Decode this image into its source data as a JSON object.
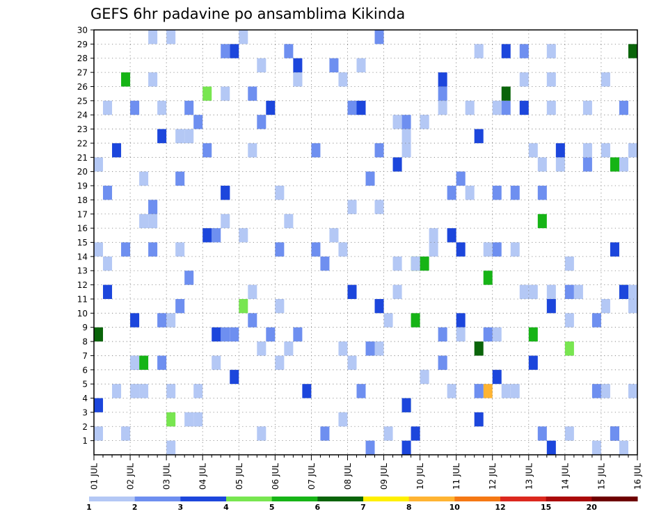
{
  "chart_data": {
    "type": "heatmap",
    "title": "GEFS 6hr padavine po ansamblima Kikinda",
    "xlabel": "",
    "ylabel": "",
    "x_ticks": [
      "01 JUL",
      "02 JUL",
      "03 JUL",
      "04 JUL",
      "05 JUL",
      "06 JUL",
      "07 JUL",
      "08 JUL",
      "09 JUL",
      "10 JUL",
      "11 JUL",
      "12 JUL",
      "13 JUL",
      "14 JUL",
      "15 JUL",
      "16 JUL"
    ],
    "x_range": [
      "01 JUL 00Z",
      "16 JUL 00Z"
    ],
    "time_step_hours": 6,
    "y_ticks": [
      "1",
      "2",
      "3",
      "4",
      "5",
      "6",
      "7",
      "8",
      "9",
      "10",
      "11",
      "12",
      "13",
      "14",
      "15",
      "16",
      "17",
      "18",
      "19",
      "20",
      "21",
      "22",
      "23",
      "24",
      "25",
      "26",
      "27",
      "28",
      "29",
      "30"
    ],
    "y_range": [
      0,
      30
    ],
    "grid": true,
    "color_scale": {
      "colors": [
        "#b4c8f5",
        "#6e8ff0",
        "#1c46dc",
        "#78e650",
        "#16b416",
        "#0a640a",
        "#fff000",
        "#ffb432",
        "#f57814",
        "#dc281e",
        "#aa0a0a",
        "#6e0000"
      ],
      "tick_labels": [
        "1",
        "2",
        "3",
        "4",
        "5",
        "6",
        "7",
        "8",
        "10",
        "12",
        "15",
        "20"
      ],
      "legend_position": "bottom"
    },
    "cells": [
      [
        29,
        1
      ],
      [
        30,
        2
      ],
      [
        38,
        2
      ],
      [
        39,
        2
      ],
      [
        42,
        1
      ],
      [
        43,
        1
      ],
      [
        44,
        1
      ],
      [
        45,
        1
      ],
      [
        46,
        1
      ],
      [
        52,
        1
      ],
      [
        57,
        3
      ],
      [
        58,
        4
      ],
      [
        64,
        2
      ],
      [
        67,
        3
      ],
      [
        68,
        4
      ],
      [
        72,
        2
      ],
      [
        76,
        4
      ],
      [
        78,
        2
      ],
      [
        80,
        1
      ],
      [
        81,
        1
      ],
      [
        82,
        1
      ],
      [
        86,
        1
      ],
      [
        93,
        1
      ],
      [
        94,
        2
      ],
      [
        99,
        3
      ],
      [
        103,
        8
      ],
      [
        104,
        2
      ],
      [
        105,
        2
      ],
      [
        106,
        1
      ],
      [
        109,
        1
      ],
      [
        110,
        3
      ],
      [
        112,
        1
      ],
      [
        119,
        1
      ],
      [
        125,
        5
      ],
      [
        126,
        1
      ],
      [
        128,
        1
      ],
      [
        130,
        2
      ],
      [
        132,
        4
      ],
      [
        134,
        2
      ],
      [
        138,
        1
      ],
      [
        140,
        1
      ],
      [
        148,
        3
      ],
      [
        155,
        5
      ],
      [
        162,
        6
      ],
      [
        176,
        1
      ],
      [
        8,
        1
      ],
      [
        10,
        1
      ],
      [
        13,
        3
      ],
      [
        14,
        3
      ],
      [
        15,
        3
      ],
      [
        17,
        1
      ],
      [
        19,
        3
      ],
      [
        21,
        1
      ],
      [
        27,
        1
      ],
      [
        31,
        2
      ],
      [
        32,
        1
      ],
      [
        33,
        1
      ],
      [
        34,
        1
      ],
      [
        35,
        3
      ],
      [
        37,
        1
      ],
      [
        38,
        1
      ],
      [
        39,
        1
      ],
      [
        40,
        3
      ],
      [
        41,
        1
      ],
      [
        42,
        2
      ],
      [
        47,
        1
      ],
      [
        48,
        3
      ],
      [
        49,
        5
      ],
      [
        50,
        1
      ],
      [
        56,
        1
      ],
      [
        57,
        2
      ],
      [
        58,
        3
      ],
      [
        59,
        1
      ],
      [
        60,
        1
      ],
      [
        61,
        3
      ],
      [
        62,
        3
      ],
      [
        64,
        1
      ],
      [
        66,
        1
      ],
      [
        68,
        1
      ],
      [
        69,
        2
      ],
      [
        71,
        2
      ],
      [
        73,
        1
      ],
      [
        74,
        1
      ],
      [
        76,
        1
      ],
      [
        77,
        2
      ],
      [
        81,
        2
      ],
      [
        82,
        2
      ],
      [
        84,
        2
      ],
      [
        85,
        2
      ],
      [
        87,
        1
      ],
      [
        88,
        2
      ],
      [
        89,
        2
      ],
      [
        91,
        1
      ],
      [
        94,
        4
      ],
      [
        95,
        5
      ],
      [
        96,
        1
      ],
      [
        98,
        1
      ],
      [
        100,
        1
      ],
      [
        104,
        1
      ],
      [
        107,
        3
      ],
      [
        110,
        3
      ],
      [
        111,
        1
      ],
      [
        115,
        2
      ],
      [
        119,
        6
      ],
      [
        120,
        6
      ],
      [
        121,
        2
      ],
      [
        123,
        1
      ],
      [
        126,
        2
      ],
      [
        134,
        3
      ],
      [
        138,
        1
      ],
      [
        142,
        1
      ],
      [
        149,
        3
      ],
      [
        151,
        1
      ],
      [
        153,
        3
      ],
      [
        154,
        3
      ],
      [
        156,
        5
      ],
      [
        158,
        3
      ],
      [
        160,
        3
      ],
      [
        162,
        3
      ],
      [
        164,
        3
      ],
      [
        166,
        2
      ],
      [
        167,
        2
      ],
      [
        168,
        5
      ],
      [
        169,
        2
      ],
      [
        170,
        1
      ],
      [
        172,
        2
      ],
      [
        174,
        1
      ],
      [
        175,
        2
      ],
      [
        178,
        1
      ],
      [
        180,
        3
      ],
      [
        181,
        1
      ],
      [
        183,
        5
      ],
      [
        184,
        1
      ],
      [
        185,
        1
      ],
      [
        186,
        1
      ],
      [
        187,
        2
      ],
      [
        189,
        2
      ],
      [
        191,
        1
      ],
      [
        193,
        2
      ],
      [
        194,
        1
      ],
      [
        195,
        3
      ],
      [
        196,
        1
      ],
      [
        197,
        2
      ],
      [
        199,
        2
      ],
      [
        200,
        1
      ],
      [
        203,
        3
      ],
      [
        204,
        2
      ],
      [
        206,
        2
      ],
      [
        207,
        1
      ],
      [
        208,
        1
      ],
      [
        210,
        2
      ],
      [
        211,
        3
      ],
      [
        213,
        1
      ],
      [
        214,
        3
      ],
      [
        215,
        1
      ],
      [
        216,
        1
      ],
      [
        218,
        2
      ],
      [
        220,
        2
      ],
      [
        222,
        3
      ],
      [
        223,
        5
      ],
      [
        225,
        6
      ],
      [
        228,
        1
      ],
      [
        230,
        1
      ],
      [
        232,
        4
      ],
      [
        234,
        2
      ],
      [
        235,
        1
      ],
      [
        236,
        1
      ],
      [
        237,
        5
      ],
      [
        238,
        1
      ],
      [
        239,
        1
      ],
      [
        240,
        1
      ],
      [
        244,
        3
      ],
      [
        245,
        1
      ],
      [
        246,
        1
      ],
      [
        247,
        2
      ],
      [
        249,
        1
      ],
      [
        250,
        1
      ],
      [
        252,
        3
      ],
      [
        254,
        2
      ],
      [
        255,
        2
      ],
      [
        257,
        1
      ],
      [
        258,
        1
      ],
      [
        260,
        2
      ],
      [
        262,
        3
      ],
      [
        265,
        2
      ],
      [
        267,
        1
      ],
      [
        268,
        1
      ],
      [
        270,
        2
      ],
      [
        271,
        2
      ],
      [
        272,
        1
      ],
      [
        274,
        1
      ],
      [
        276,
        1
      ],
      [
        277,
        1
      ],
      [
        278,
        2
      ],
      [
        280,
        1
      ],
      [
        281,
        1
      ],
      [
        282,
        1
      ],
      [
        283,
        2
      ],
      [
        284,
        2
      ],
      [
        285,
        3
      ],
      [
        287,
        1
      ],
      [
        288,
        1
      ],
      [
        289,
        2
      ],
      [
        290,
        1
      ],
      [
        291,
        3
      ],
      [
        292,
        1
      ],
      [
        293,
        1
      ],
      [
        294,
        1
      ],
      [
        296,
        1
      ],
      [
        297,
        3
      ],
      [
        298,
        2
      ],
      [
        299,
        1
      ],
      [
        300,
        1
      ],
      [
        301,
        1
      ],
      [
        302,
        1
      ],
      [
        303,
        2
      ],
      [
        304,
        2
      ],
      [
        305,
        1
      ],
      [
        306,
        2
      ],
      [
        307,
        1
      ],
      [
        308,
        1
      ],
      [
        309,
        1
      ],
      [
        310,
        2
      ],
      [
        311,
        1
      ]
    ]
  }
}
